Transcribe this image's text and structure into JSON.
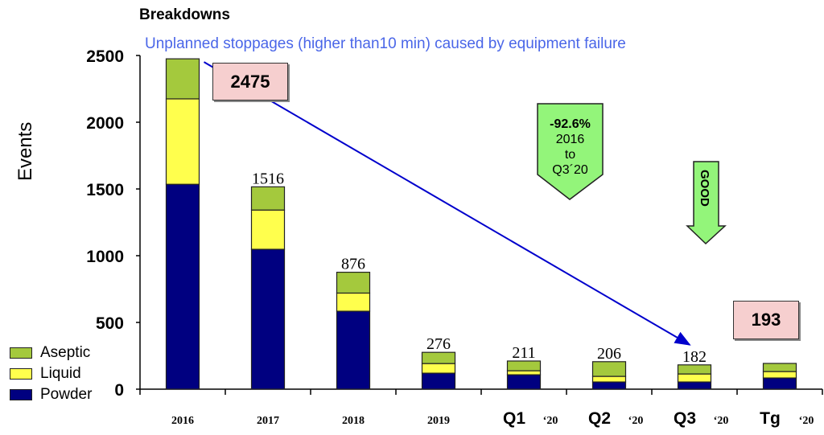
{
  "chart_data": {
    "type": "bar",
    "stacked": true,
    "title": "Breakdowns",
    "subtitle": "Unplanned stoppages (higher than10 min) caused by equipment failure",
    "ylabel": "Events",
    "xlabel": "",
    "ylim": [
      0,
      2500
    ],
    "yticks": [
      "0",
      "500",
      "1000",
      "1500",
      "2000",
      "2500"
    ],
    "categories": [
      {
        "main": "2016",
        "suffix": ""
      },
      {
        "main": "2017",
        "suffix": ""
      },
      {
        "main": "2018",
        "suffix": ""
      },
      {
        "main": "2019",
        "suffix": ""
      },
      {
        "main": "Q1",
        "suffix": "‘20"
      },
      {
        "main": "Q2",
        "suffix": "‘20"
      },
      {
        "main": "Q3",
        "suffix": "‘20"
      },
      {
        "main": "Tg",
        "suffix": "‘20"
      }
    ],
    "series": [
      {
        "name": "Powder",
        "color": "#000080",
        "values": [
          1535,
          1048,
          584,
          120,
          108,
          54,
          54,
          84
        ]
      },
      {
        "name": "Liquid",
        "color": "#ffff4d",
        "values": [
          640,
          294,
          136,
          72,
          30,
          42,
          60,
          48
        ]
      },
      {
        "name": "Aseptic",
        "color": "#a4c93d",
        "values": [
          300,
          174,
          156,
          84,
          73,
          110,
          68,
          61
        ]
      }
    ],
    "totals": [
      2475,
      1516,
      876,
      276,
      211,
      206,
      182,
      193
    ],
    "data_labels": [
      "",
      "1516",
      "876",
      "276",
      "211",
      "206",
      "182",
      ""
    ],
    "legend": {
      "position": "bottom-left",
      "entries": [
        "Aseptic",
        "Liquid",
        "Powder"
      ]
    },
    "grid": false,
    "annotations": {
      "callout_start": "2475",
      "callout_target": "193",
      "trend_arrow": {
        "from": "2016",
        "to": "Q3 ‘20"
      },
      "reduction": {
        "line1": "-92.6%",
        "line2": "2016",
        "line3": "to",
        "line4": "Q3´20"
      },
      "good_arrow": "GOOD"
    }
  }
}
